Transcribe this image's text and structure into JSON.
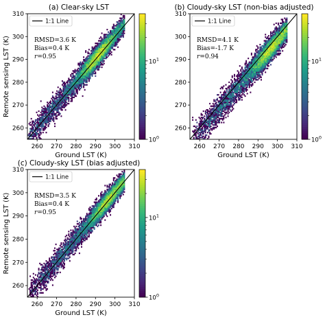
{
  "chart_data": [
    {
      "type": "scatter",
      "title": "(a) Clear-sky LST",
      "xlabel": "Ground LST (K)",
      "ylabel": "Remote sensing LST (K)",
      "xlim": [
        255,
        310
      ],
      "ylim": [
        255,
        310
      ],
      "xticks": [
        "260",
        "270",
        "280",
        "290",
        "300",
        "310"
      ],
      "yticks": [
        "260",
        "270",
        "280",
        "290",
        "300",
        "310"
      ],
      "legend": {
        "label": "1:1 Line",
        "position": "top-left"
      },
      "stats": {
        "rmsd": "RMSD=3.6 K",
        "bias": "Bias=0.4 K",
        "r_label": "r",
        "r_value": "=0.95"
      },
      "colorbar": {
        "scale": "log",
        "range": [
          1,
          40
        ],
        "tick_base": "10",
        "tick_exps": [
          "0",
          "1"
        ]
      },
      "density": {
        "x_range": [
          255,
          305
        ],
        "bias": 0.4,
        "rmsd": 3.6,
        "peak": [
          290,
          292
        ]
      }
    },
    {
      "type": "scatter",
      "title": "(b) Cloudy-sky LST (non-bias adjusted)",
      "xlabel": "Ground LST (K)",
      "ylabel": "",
      "xlim": [
        255,
        310
      ],
      "ylim": [
        255,
        310
      ],
      "xticks": [
        "260",
        "270",
        "280",
        "290",
        "300",
        "310"
      ],
      "yticks": [
        "260",
        "270",
        "280",
        "290",
        "300",
        "310"
      ],
      "legend": {
        "label": "1:1 Line",
        "position": "top-left"
      },
      "stats": {
        "rmsd": "RMSD=4.1 K",
        "bias": "Bias=-1.7 K",
        "r_label": "r",
        "r_value": "=0.94"
      },
      "colorbar": {
        "scale": "log",
        "range": [
          1,
          40
        ],
        "tick_base": "10",
        "tick_exps": [
          "0",
          "1"
        ]
      },
      "density": {
        "x_range": [
          256,
          305
        ],
        "bias": -1.7,
        "rmsd": 4.1,
        "peak": [
          293,
          299
        ]
      }
    },
    {
      "type": "scatter",
      "title": "(c) Cloudy-sky LST (bias adjusted)",
      "xlabel": "Ground LST (K)",
      "ylabel": "Remote sensing LST (K)",
      "xlim": [
        255,
        310
      ],
      "ylim": [
        255,
        310
      ],
      "xticks": [
        "260",
        "270",
        "280",
        "290",
        "300",
        "310"
      ],
      "yticks": [
        "260",
        "270",
        "280",
        "290",
        "300",
        "310"
      ],
      "legend": {
        "label": "1:1 Line",
        "position": "top-left"
      },
      "stats": {
        "rmsd": "RMSD=3.5 K",
        "bias": "Bias=0.4 K",
        "r_label": "r",
        "r_value": "=0.95"
      },
      "colorbar": {
        "scale": "log",
        "range": [
          1,
          40
        ],
        "tick_base": "10",
        "tick_exps": [
          "0",
          "1"
        ]
      },
      "density": {
        "x_range": [
          256,
          305
        ],
        "bias": 0.4,
        "rmsd": 3.5,
        "peak": [
          293,
          299
        ]
      }
    }
  ],
  "colors": {
    "line": "#000000",
    "viridis": [
      "#440154",
      "#482878",
      "#3e4989",
      "#31688e",
      "#26828e",
      "#1f9e89",
      "#35b779",
      "#6ece58",
      "#b5de2b",
      "#fde725"
    ]
  }
}
